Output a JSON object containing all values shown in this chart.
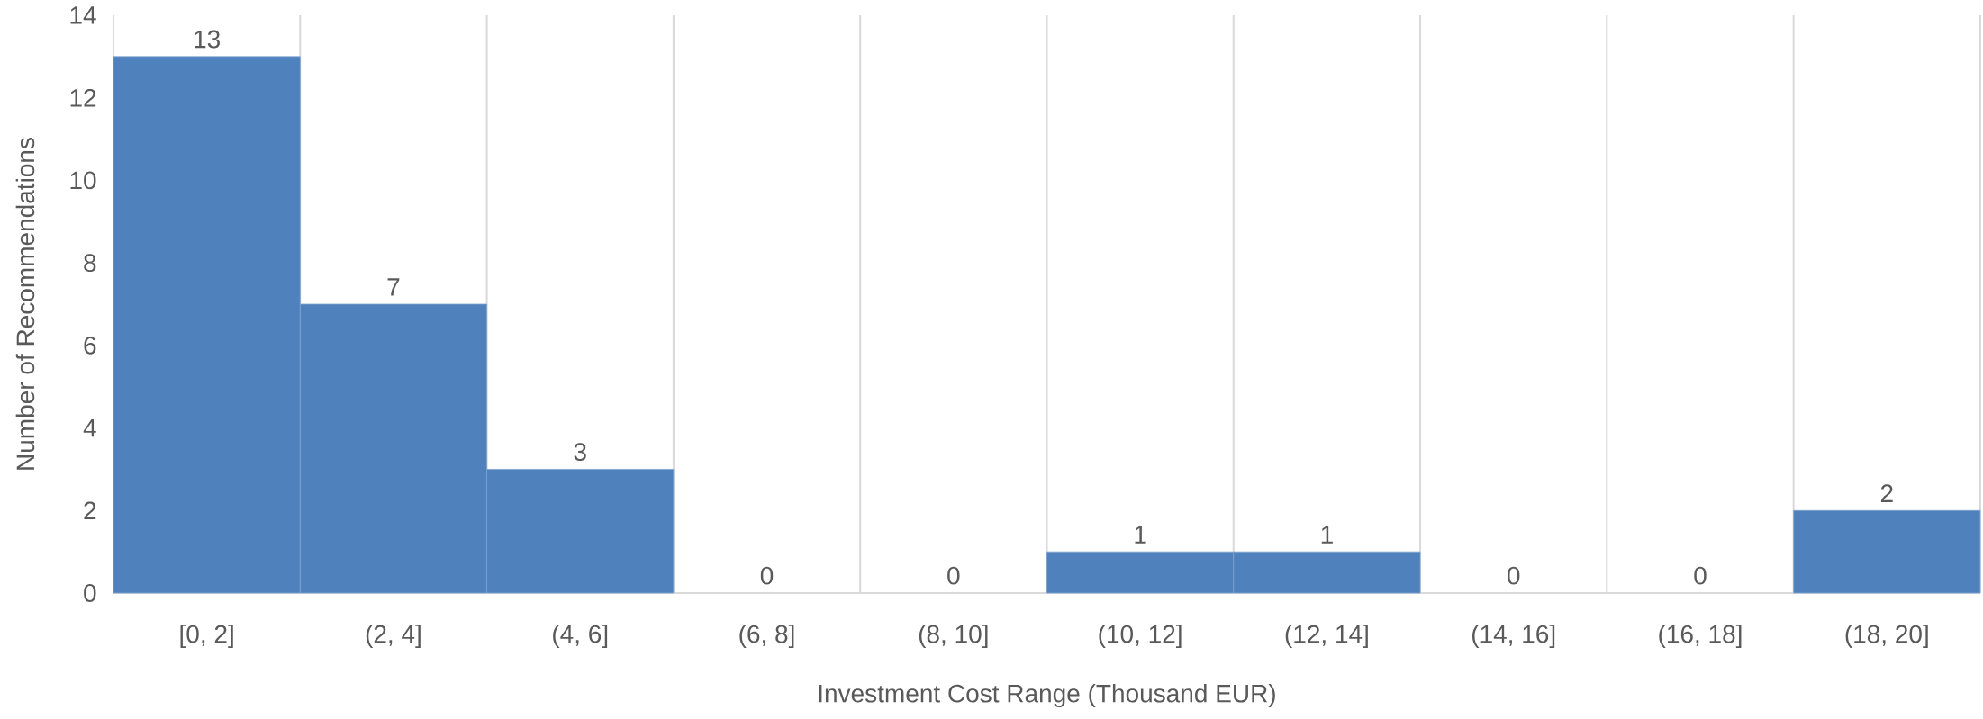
{
  "chart_data": {
    "type": "bar",
    "xlabel": "Investment Cost Range (Thousand EUR)",
    "ylabel": "Number of Recommendations",
    "categories": [
      "[0, 2]",
      "(2, 4]",
      "(4, 6]",
      "(6, 8]",
      "(8, 10]",
      "(10, 12]",
      "(12, 14]",
      "(14, 16]",
      "(16, 18]",
      "(18, 20]"
    ],
    "values": [
      13,
      7,
      3,
      0,
      0,
      1,
      1,
      0,
      0,
      2
    ],
    "color": "#4f81bd",
    "ylim": [
      0,
      14
    ],
    "yticks": [
      0,
      2,
      4,
      6,
      8,
      10,
      12,
      14
    ],
    "grid": "x",
    "data_labels": true
  }
}
